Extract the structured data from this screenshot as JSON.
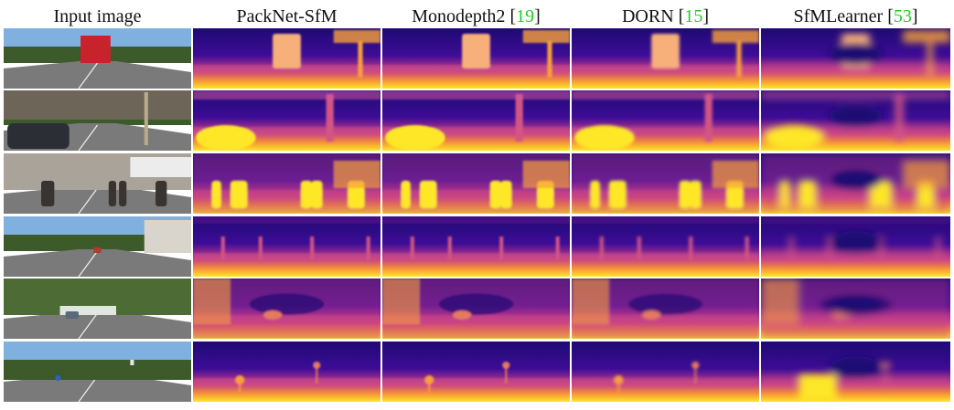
{
  "headers": [
    {
      "label": "Input image"
    },
    {
      "label": "PackNet-SfM"
    },
    {
      "label": "Monodepth2 ",
      "ref": "19"
    },
    {
      "label": "DORN ",
      "ref": "15"
    },
    {
      "label": "SfMLearner ",
      "ref": "53"
    }
  ],
  "colors": {
    "ref": "#22cc22",
    "depth_far": "#1e0a73",
    "depth_mid": "#c23a8a",
    "depth_near": "#fde725",
    "sky": "#7fb0e0",
    "foliage": "#3d5a2a",
    "road": "#7a7a7a"
  },
  "rows": [
    {
      "scene": "street-truck"
    },
    {
      "scene": "street-cars"
    },
    {
      "scene": "pedestrians"
    },
    {
      "scene": "street-houses"
    },
    {
      "scene": "forest-road"
    },
    {
      "scene": "highway"
    }
  ]
}
